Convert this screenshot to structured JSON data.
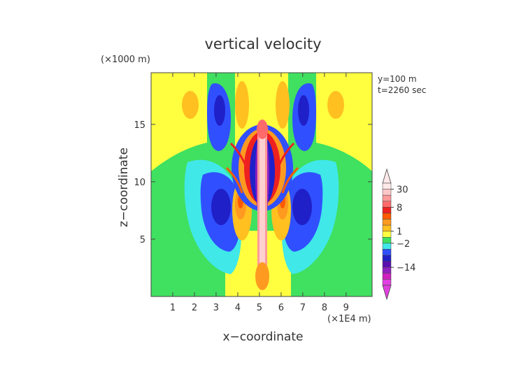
{
  "chart_data": {
    "type": "heatmap",
    "title": "vertical velocity",
    "xlabel": "x−coordinate",
    "ylabel": "z−coordinate",
    "x_unit": "(×1E4 m)",
    "y_unit": "(×1000 m)",
    "annotations": [
      "y=100 m",
      "t=2260 sec"
    ],
    "xlim": [
      0,
      10.2
    ],
    "ylim": [
      0,
      19.5
    ],
    "x_ticks": [
      "1",
      "2",
      "3",
      "4",
      "5",
      "6",
      "7",
      "8",
      "9"
    ],
    "y_ticks": [
      "5",
      "10",
      "15"
    ],
    "colorbar": {
      "tick_labels": [
        "30",
        "8",
        "1",
        "−2",
        "−14"
      ],
      "levels": [
        30,
        8,
        1,
        -2,
        -14
      ],
      "colors": [
        "#ffe8e8",
        "#ffc8c8",
        "#ff9a9a",
        "#ff6a6a",
        "#ee2020",
        "#ff5a00",
        "#ff9a20",
        "#ffc020",
        "#ffff40",
        "#40e060",
        "#40e8e8",
        "#3050ff",
        "#2020c8",
        "#5a10b0",
        "#9020c0",
        "#d020c0",
        "#e040e0"
      ]
    },
    "field_description_colors": {
      "background": "#ffff40",
      "lower_region": "#40e060",
      "updraft_core": "#ffd0d0",
      "downdraft": "#2030e0"
    }
  }
}
